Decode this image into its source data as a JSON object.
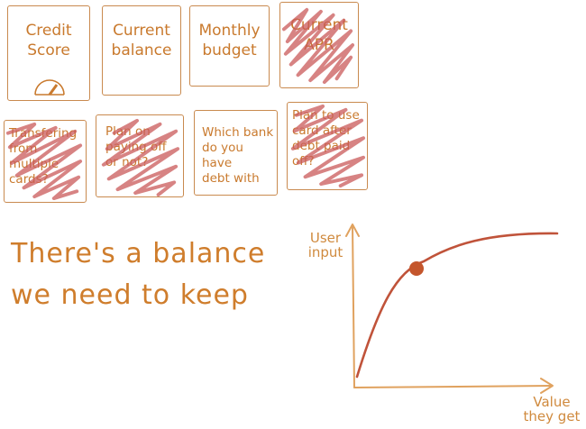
{
  "cards": [
    {
      "label": "Credit\nScore"
    },
    {
      "label": "Current\nbalance"
    },
    {
      "label": "Monthly\nbudget"
    },
    {
      "label": "Current\nAPR"
    },
    {
      "label": "Transfering\nfrom multiple\ncards?"
    },
    {
      "label": "Plan on\npaying off\nor not?"
    },
    {
      "label": "Which bank\ndo you have\ndebt with"
    },
    {
      "label": "Plan to use\ncard after\ndebt paid\noff?"
    }
  ],
  "caption": {
    "line1": "There's a balance",
    "line2": "we need to keep"
  },
  "graph": {
    "y_axis_label": "User\ninput",
    "x_axis_label": "Value\nthey get"
  },
  "colors": {
    "ink": "#c97a2e",
    "card_outline": "#c98a4f",
    "scribble": "#c95a5a",
    "curve": "#c0533a",
    "axis": "#e0a25f",
    "dot": "#c4562c"
  },
  "icons": [
    "gauge-icon"
  ]
}
